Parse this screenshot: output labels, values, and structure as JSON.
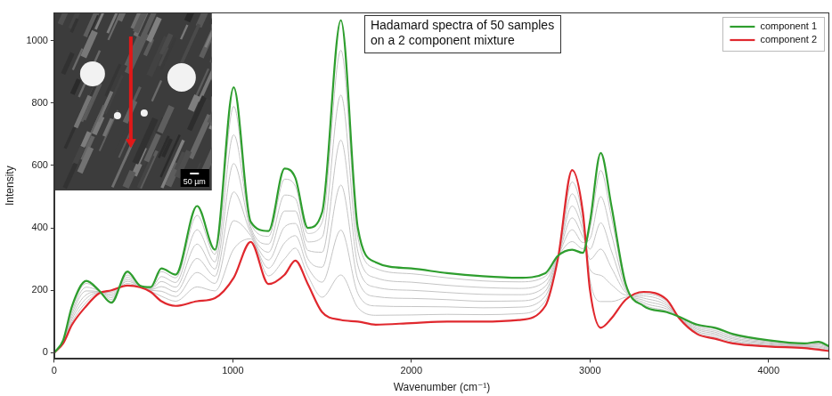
{
  "chart_data": {
    "type": "line",
    "x_label": "Wavenumber (cm⁻¹)",
    "y_label": "Intensity",
    "annotation": [
      "Hadamard spectra of 50 samples",
      "on a 2 component mixture"
    ],
    "inset": {
      "scale_bar": "50 µm"
    },
    "legend": "top-right",
    "grid": false,
    "xlim": [
      0,
      4340
    ],
    "ylim": [
      -20,
      1090
    ],
    "xticks": [
      0,
      1000,
      2000,
      3000,
      4000
    ],
    "yticks": [
      0,
      200,
      400,
      600,
      800,
      1000
    ],
    "x": [
      0,
      50,
      100,
      180,
      250,
      320,
      410,
      480,
      540,
      600,
      680,
      800,
      900,
      1005,
      1100,
      1200,
      1290,
      1350,
      1420,
      1500,
      1605,
      1700,
      1800,
      2000,
      2200,
      2400,
      2600,
      2750,
      2820,
      2900,
      2960,
      3000,
      3060,
      3120,
      3200,
      3300,
      3430,
      3500,
      3600,
      3700,
      3800,
      4000,
      4200,
      4280,
      4340
    ],
    "series": [
      {
        "color": "#c4c4c4",
        "values": [
          0,
          39,
          144,
          222,
          199,
          164,
          256,
          215,
          209,
          260,
          240,
          440,
          315,
          789,
          414,
          373,
          556,
          534,
          382,
          418,
          969,
          370,
          270,
          253,
          240,
          230,
          227,
          245,
          309,
          356,
          333,
          398,
          584,
          434,
          215,
          155,
          134,
          115,
          87,
          77,
          57,
          38,
          29,
          32,
          19
        ]
      },
      {
        "color": "#c4c4c4",
        "values": [
          0,
          38,
          135,
          210,
          198,
          170,
          249,
          214,
          206,
          244,
          225,
          394,
          291,
          698,
          404,
          348,
          505,
          494,
          355,
          370,
          825,
          325,
          240,
          226,
          216,
          209,
          206,
          229,
          308,
          394,
          353,
          365,
          500,
          380,
          208,
          161,
          140,
          114,
          83,
          71,
          53,
          35,
          26,
          29,
          16
        ]
      },
      {
        "color": "#c4c4c4",
        "values": [
          0,
          36,
          126,
          198,
          196,
          176,
          242,
          213,
          204,
          228,
          210,
          348,
          268,
          606,
          394,
          322,
          454,
          454,
          328,
          322,
          681,
          280,
          210,
          200,
          193,
          187,
          186,
          213,
          306,
          432,
          372,
          332,
          416,
          326,
          200,
          168,
          146,
          113,
          78,
          66,
          48,
          32,
          24,
          25,
          14
        ]
      },
      {
        "color": "#c4c4c4",
        "values": [
          0,
          35,
          117,
          186,
          195,
          182,
          235,
          212,
          202,
          212,
          195,
          302,
          245,
          515,
          384,
          297,
          403,
          414,
          301,
          274,
          537,
          235,
          180,
          174,
          170,
          165,
          166,
          197,
          305,
          470,
          392,
          299,
          332,
          272,
          193,
          175,
          152,
          112,
          74,
          61,
          44,
          29,
          22,
          21,
          12
        ]
      },
      {
        "color": "#c4c4c4",
        "values": [
          0,
          33,
          108,
          174,
          193,
          188,
          229,
          212,
          200,
          197,
          180,
          257,
          222,
          423,
          375,
          271,
          352,
          375,
          274,
          226,
          393,
          190,
          150,
          148,
          147,
          144,
          146,
          182,
          303,
          509,
          411,
          266,
          248,
          218,
          185,
          182,
          158,
          112,
          69,
          56,
          39,
          26,
          20,
          18,
          10
        ]
      },
      {
        "color": "#c4c4c4",
        "values": [
          0,
          32,
          99,
          162,
          192,
          194,
          222,
          211,
          197,
          181,
          165,
          211,
          198,
          332,
          365,
          246,
          301,
          335,
          247,
          178,
          249,
          145,
          120,
          121,
          123,
          122,
          125,
          166,
          302,
          547,
          431,
          233,
          164,
          164,
          178,
          189,
          164,
          111,
          65,
          50,
          35,
          23,
          17,
          14,
          7
        ]
      },
      {
        "name": "component 1",
        "color": "#2e9e2e",
        "values": [
          0,
          40,
          150,
          230,
          200,
          160,
          260,
          215,
          210,
          270,
          250,
          470,
          330,
          850,
          420,
          390,
          590,
          560,
          400,
          450,
          1065,
          400,
          290,
          270,
          255,
          245,
          240,
          255,
          310,
          330,
          320,
          420,
          640,
          470,
          220,
          150,
          130,
          115,
          90,
          80,
          60,
          40,
          30,
          35,
          20
        ]
      },
      {
        "name": "component 2",
        "color": "#e0282e",
        "values": [
          0,
          30,
          90,
          150,
          190,
          200,
          215,
          210,
          195,
          165,
          150,
          165,
          175,
          240,
          355,
          220,
          250,
          295,
          220,
          130,
          105,
          100,
          90,
          95,
          100,
          100,
          105,
          150,
          300,
          585,
          450,
          200,
          80,
          110,
          170,
          195,
          170,
          110,
          60,
          45,
          30,
          20,
          15,
          10,
          5
        ]
      }
    ]
  }
}
